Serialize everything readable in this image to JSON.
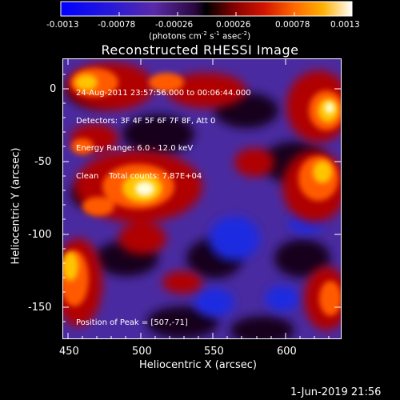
{
  "colorbar": {
    "tick_labels": [
      "-0.0013",
      "-0.00078",
      "-0.00026",
      "0.00026",
      "0.00078",
      "0.0013"
    ],
    "units_prefix": "(photons cm",
    "units_exp1": "-2",
    "units_mid1": " s",
    "units_exp2": "-1",
    "units_mid2": " asec",
    "units_exp3": "-2",
    "units_suffix": ")"
  },
  "plot": {
    "title": "Reconstructed RHESSI Image",
    "info_lines": [
      "24-Aug-2011 23:57:56.000 to 00:06:44.000",
      "Detectors: 3F 4F 5F 6F 7F 8F, Att 0",
      "Energy Range: 6.0 - 12.0 keV",
      "Clean    Total counts: 7.87E+04"
    ],
    "peak_text": "Position of Peak = [507,-71]"
  },
  "chart_data": {
    "type": "heatmap",
    "title": "Reconstructed RHESSI Image",
    "xlabel": "Heliocentric X (arcsec)",
    "ylabel": "Heliocentric Y (arcsec)",
    "xlim": [
      446,
      638
    ],
    "ylim": [
      -171,
      21
    ],
    "x_ticks": [
      450,
      500,
      550,
      600
    ],
    "y_ticks": [
      0,
      -50,
      -100,
      -150
    ],
    "colorbar_range": [
      -0.0013,
      0.0013
    ],
    "peak": [
      507,
      -71
    ]
  },
  "footer": {
    "date": "1-Jun-2019 21:56"
  }
}
